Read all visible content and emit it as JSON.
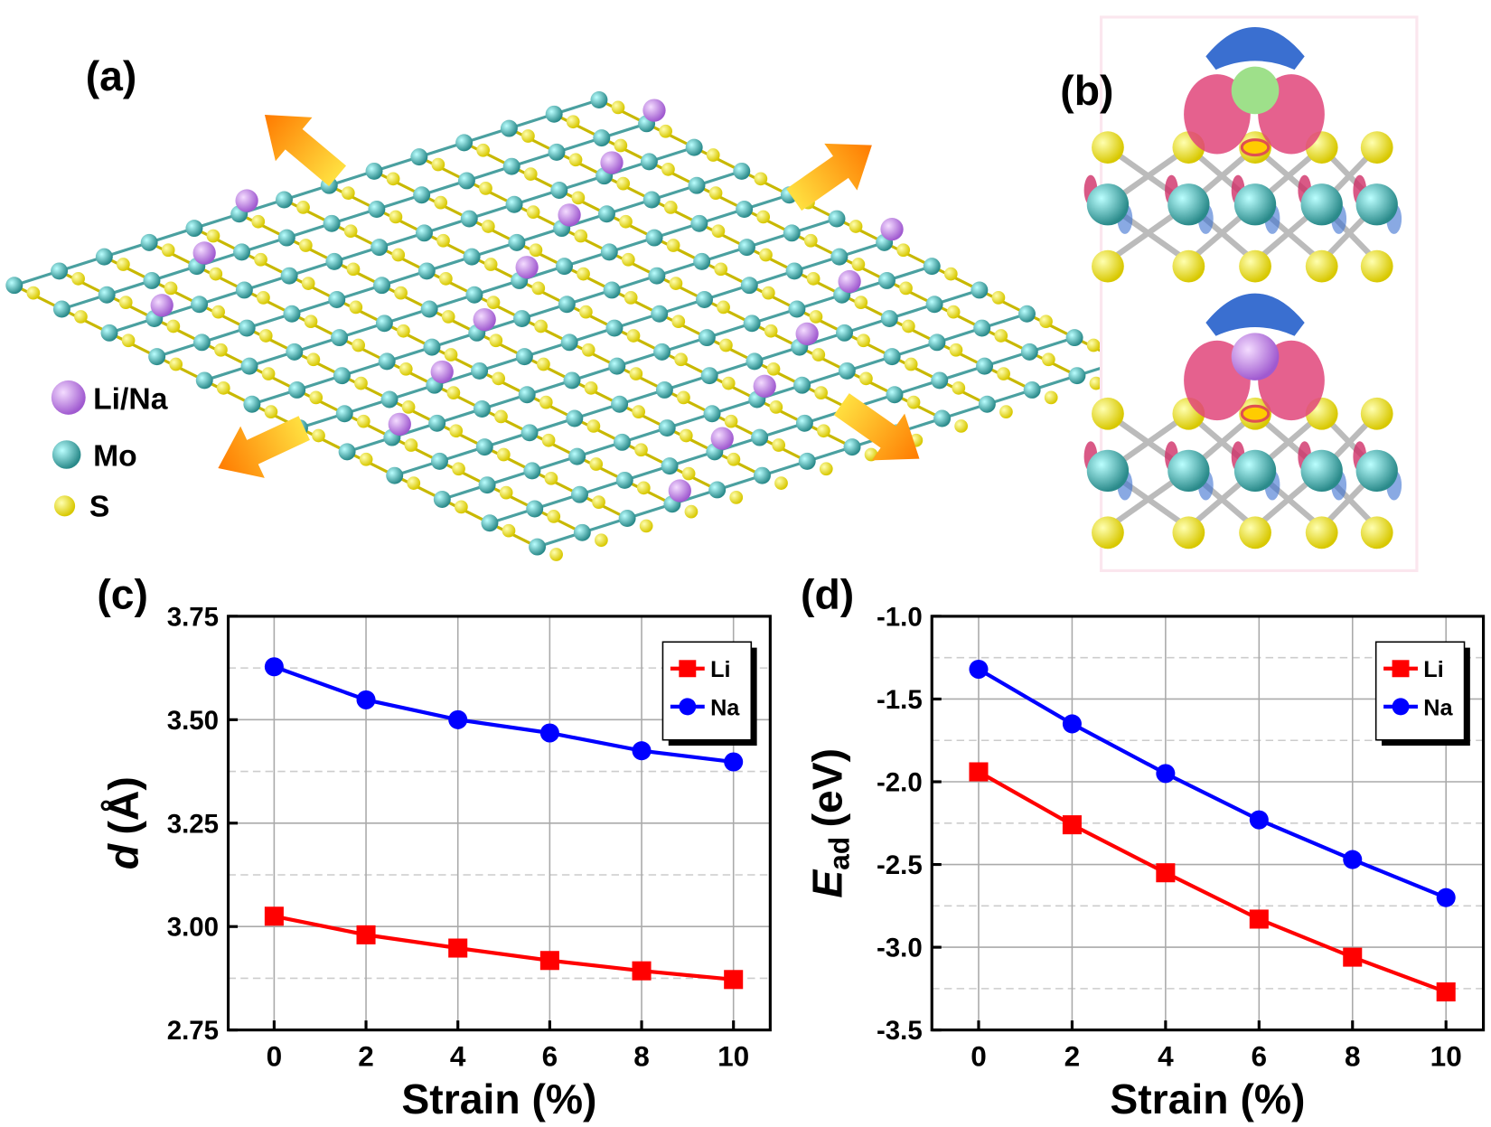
{
  "illustration": {
    "panel_a": "(a)",
    "legend": [
      "Li/Na",
      "Mo",
      "S"
    ],
    "panel_b": "(b)"
  },
  "chart_data": [
    {
      "type": "line",
      "panel_label": "(c)",
      "xlabel": "Strain (%)",
      "ylabel_symbol": "d",
      "ylabel_unit": "(Å)",
      "x": [
        0,
        2,
        4,
        6,
        8,
        10
      ],
      "xlim": [
        -1,
        10.8
      ],
      "xticks": [
        0,
        2,
        4,
        6,
        8,
        10
      ],
      "ylim": [
        2.75,
        3.75
      ],
      "yticks": [
        2.75,
        {
          "value": 3,
          "label": "3.00"
        },
        3.25,
        {
          "value": 3.5,
          "label": "3.50"
        },
        3.75
      ],
      "yminor": [
        2.875,
        3.125,
        3.375,
        3.625
      ],
      "grid": true,
      "legend": "upper right",
      "series": [
        {
          "name": "Li",
          "color": "#ff0000",
          "marker": "square",
          "values": [
            3.025,
            2.98,
            2.948,
            2.918,
            2.893,
            2.872
          ]
        },
        {
          "name": "Na",
          "color": "#0000ff",
          "marker": "circle",
          "values": [
            3.628,
            3.548,
            3.5,
            3.468,
            3.425,
            3.398
          ]
        }
      ]
    },
    {
      "type": "line",
      "panel_label": "(d)",
      "xlabel": "Strain (%)",
      "ylabel_symbol": "E",
      "ylabel_subscript": "ad",
      "ylabel_unit": "(eV)",
      "x": [
        0,
        2,
        4,
        6,
        8,
        10
      ],
      "xlim": [
        -1,
        10.8
      ],
      "xticks": [
        0,
        2,
        4,
        6,
        8,
        10
      ],
      "ylim": [
        -3.5,
        -1
      ],
      "yticks": [
        {
          "value": -1,
          "label": "-1.0"
        },
        -1.5,
        {
          "value": -2,
          "label": "-2.0"
        },
        -2.5,
        {
          "value": -3,
          "label": "-3.0"
        },
        -3.5
      ],
      "yminor": [
        -1.25,
        -1.75,
        -2.25,
        -2.75,
        -3.25
      ],
      "grid": true,
      "legend": "upper right",
      "series": [
        {
          "name": "Li",
          "color": "#ff0000",
          "marker": "square",
          "values": [
            -1.94,
            -2.26,
            -2.55,
            -2.83,
            -3.06,
            -3.27
          ]
        },
        {
          "name": "Na",
          "color": "#0000ff",
          "marker": "circle",
          "values": [
            -1.32,
            -1.65,
            -1.95,
            -2.23,
            -2.47,
            -2.7
          ]
        }
      ]
    }
  ]
}
